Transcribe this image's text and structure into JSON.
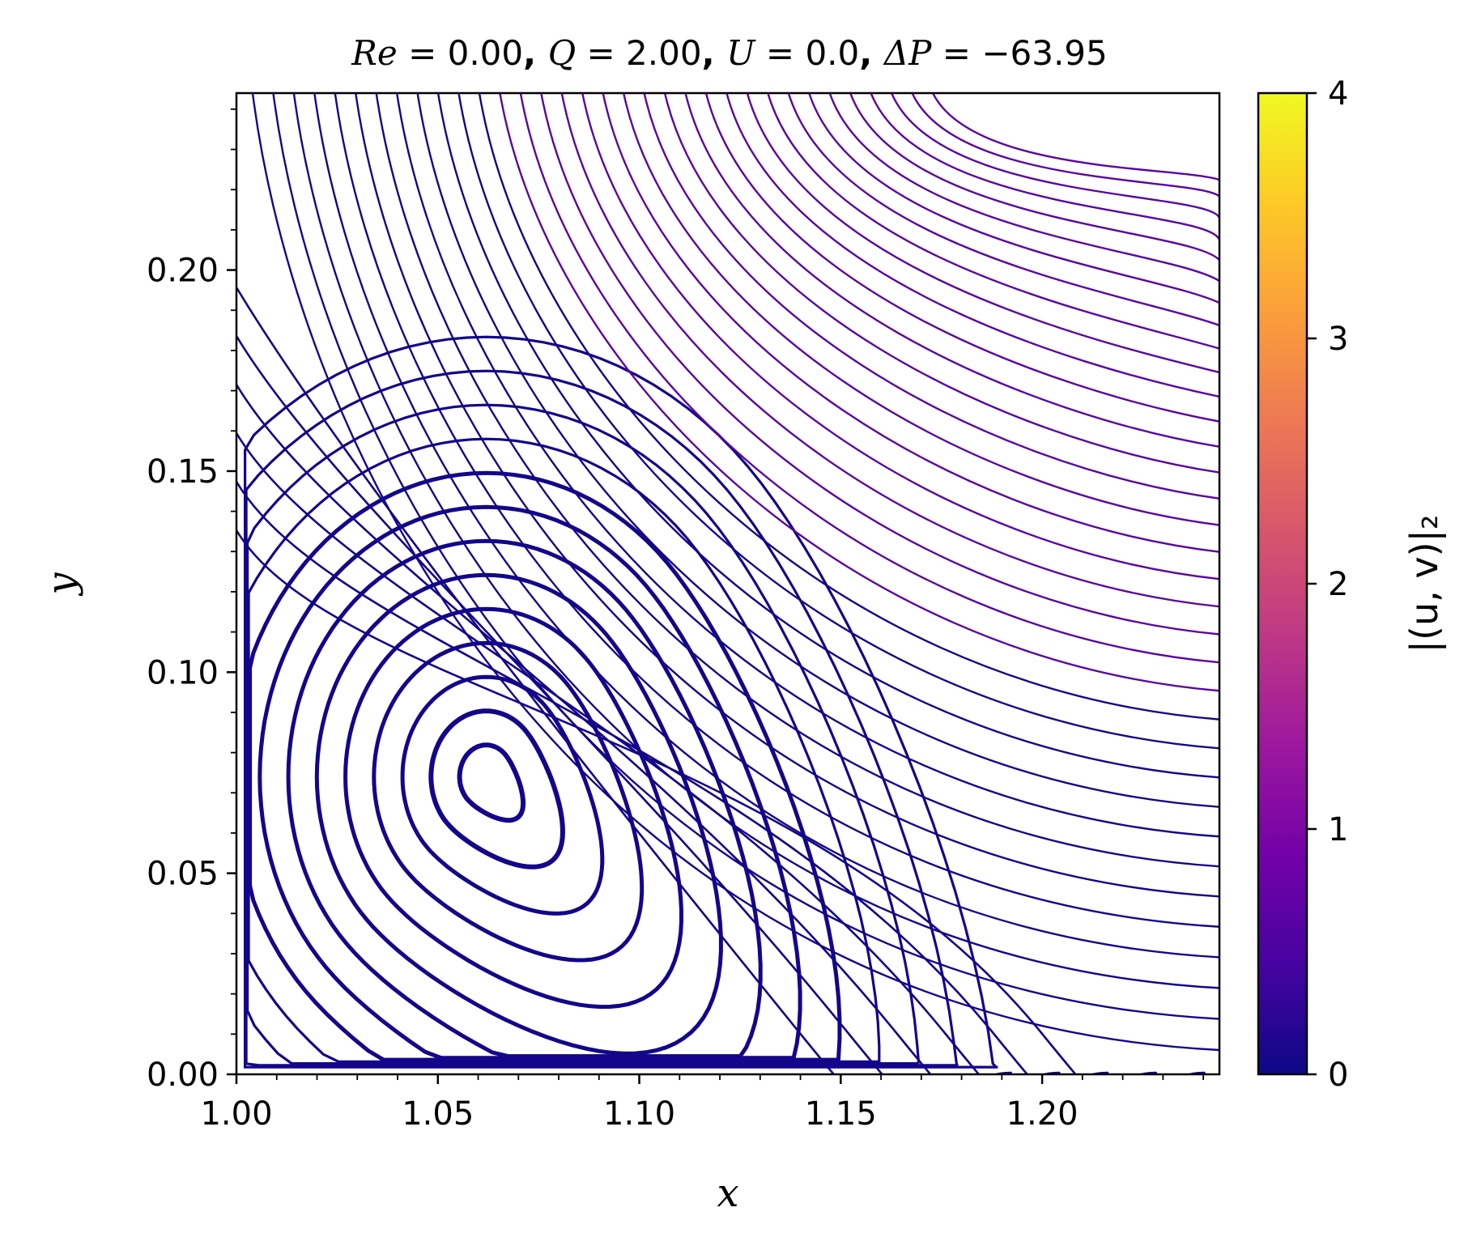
{
  "chart_data": {
    "type": "streamplot",
    "title_parts": [
      {
        "text": "Re",
        "italic": true
      },
      {
        "text": " = 0.00",
        "italic": false
      },
      {
        "text": ", ",
        "bold": true
      },
      {
        "text": "Q",
        "italic": true
      },
      {
        "text": " = 2.00",
        "italic": false
      },
      {
        "text": ", ",
        "bold": true
      },
      {
        "text": "U",
        "italic": true
      },
      {
        "text": " = 0.0",
        "italic": false
      },
      {
        "text": ", ",
        "bold": true
      },
      {
        "text": "ΔP",
        "italic": true
      },
      {
        "text": " = −63.95",
        "italic": false
      }
    ],
    "xlabel": "x",
    "ylabel": "y",
    "xlim": [
      1.0,
      1.244
    ],
    "ylim": [
      0.0,
      0.244
    ],
    "xticks": [
      "1.00",
      "1.05",
      "1.10",
      "1.15",
      "1.20"
    ],
    "yticks": [
      "0.00",
      "0.05",
      "0.10",
      "0.15",
      "0.20"
    ],
    "colorbar": {
      "label": "|(u, v)|₂",
      "range": [
        0,
        4
      ],
      "ticks": [
        "0",
        "1",
        "2",
        "3",
        "4"
      ],
      "colormap": [
        "#0d0887",
        "#46039f",
        "#7201a8",
        "#9c179e",
        "#bd3786",
        "#d8576b",
        "#ed7953",
        "#fb9f3a",
        "#fdca26",
        "#f0f921"
      ]
    },
    "vortex": {
      "center": [
        1.062,
        0.074
      ],
      "outer_extent_y": [
        0.004,
        0.165
      ]
    },
    "streamline_color_vortex": "#14068a",
    "streamline_color_far": "#5a05a0",
    "grid": false
  }
}
